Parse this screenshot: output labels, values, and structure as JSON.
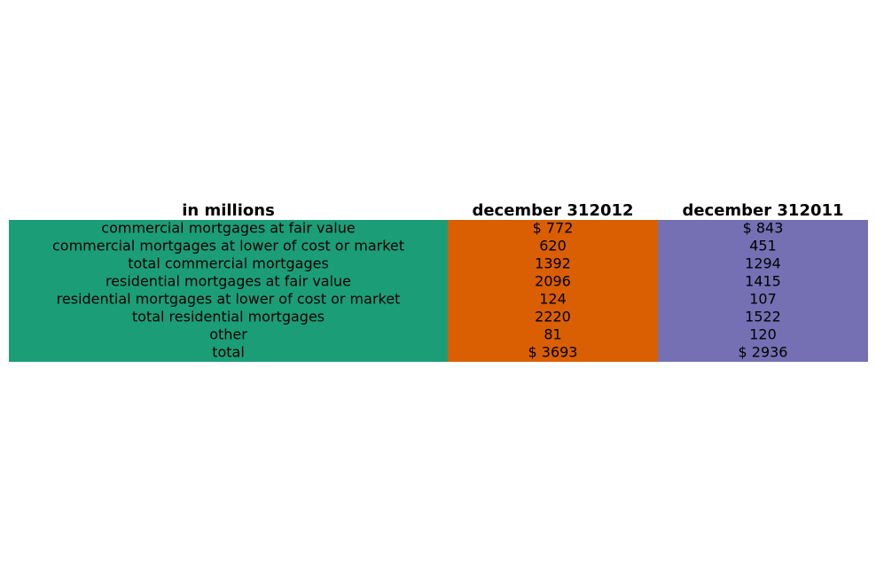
{
  "chart_data": {
    "type": "table",
    "columns": [
      "in millions",
      "december 312012",
      "december 312011"
    ],
    "rows": [
      [
        "commercial mortgages at fair value",
        "$ 772",
        "$ 843"
      ],
      [
        "commercial mortgages at lower of cost or market",
        "620",
        "451"
      ],
      [
        "total commercial mortgages",
        "1392",
        "1294"
      ],
      [
        "residential mortgages at fair value",
        "2096",
        "1415"
      ],
      [
        "residential mortgages at lower of cost or market",
        "124",
        "107"
      ],
      [
        "total residential mortgages",
        "2220",
        "1522"
      ],
      [
        "other",
        "81",
        "120"
      ],
      [
        "total",
        "$ 3693",
        "$ 2936"
      ]
    ],
    "column_colors": [
      "#1b9e77",
      "#d95f02",
      "#7570b3"
    ]
  }
}
